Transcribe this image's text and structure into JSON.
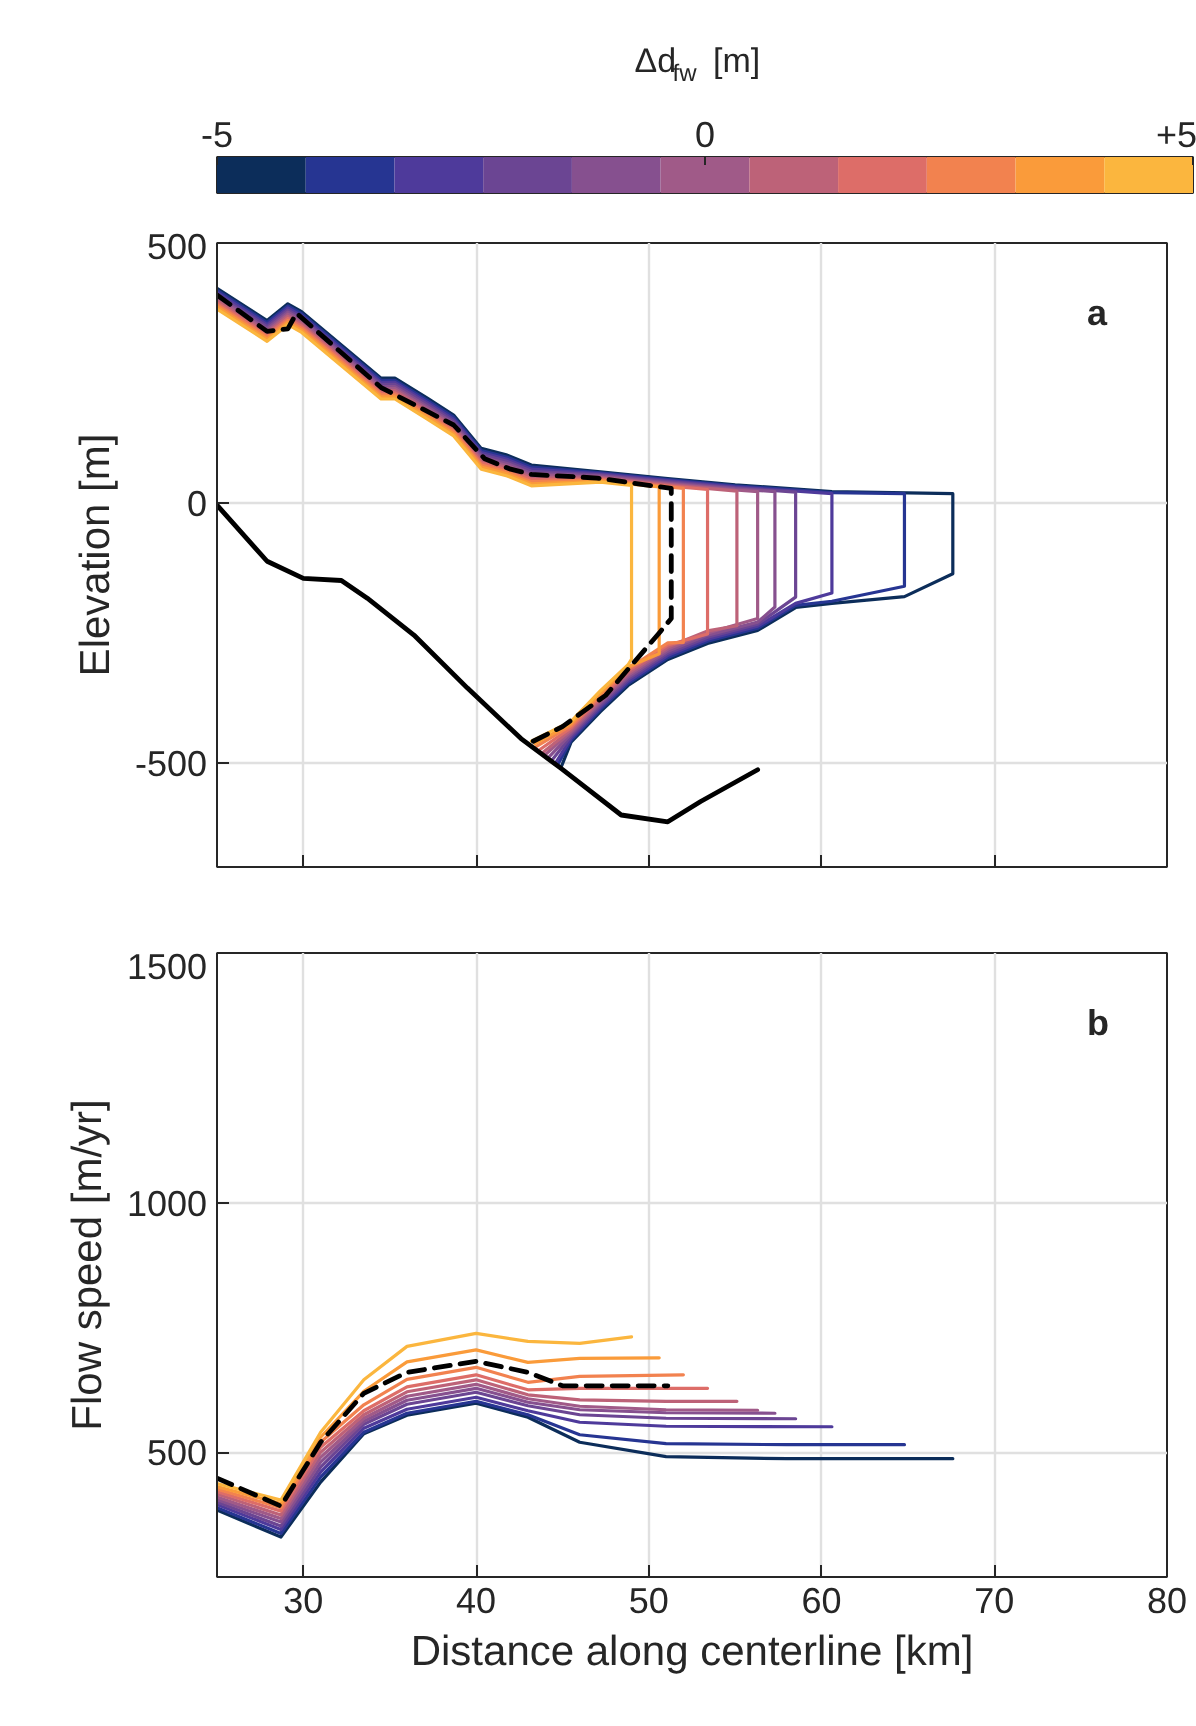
{
  "chart_data": [
    {
      "type": "line",
      "clabel": "Δd$_{fw}$ [m]",
      "clim": [
        -5,
        5
      ],
      "cticks": [
        -5,
        0,
        {
          "value": 5,
          "label": "+5"
        }
      ],
      "colors": [
        "#0c2d5a",
        "#263592",
        "#4e3a9b",
        "#6b4593",
        "#86508f",
        "#a05a88",
        "#bd6278",
        "#dd6d68",
        "#f2824f",
        "#fa9b3a",
        "#fbb63e"
      ],
      "ylabel": "Elevation [m]",
      "xlim": [
        25,
        80
      ],
      "xticks": [
        30,
        40,
        50,
        60,
        70,
        80
      ],
      "ylim": [
        -700,
        500
      ],
      "yticks": [
        -500,
        0,
        500
      ],
      "grid": true,
      "tick_labels": "y",
      "annotations": [
        "a"
      ],
      "series": [
        {
          "color": "#0c2d5a",
          "x": [
            25,
            27.9,
            29.1,
            29.9,
            34.5,
            35.3,
            37.2,
            38.7,
            40.3,
            41.8,
            43.2,
            47.2,
            51.1,
            55,
            60.6,
            67.6,
            67.6,
            64.8,
            60.6,
            58.5,
            56.3,
            53.4,
            51.1,
            48.8,
            47.2,
            45.5,
            44.9
          ],
          "values": [
            413,
            351,
            383,
            368,
            240,
            240,
            201,
            169,
            105,
            92,
            73,
            60,
            47,
            35,
            22,
            18,
            -136,
            -180,
            -193,
            -201,
            -245,
            -270,
            -301,
            -351,
            -401,
            -460,
            -510
          ]
        },
        {
          "color": "#263592",
          "x": [
            25,
            27.9,
            29.1,
            29.9,
            34.5,
            35.3,
            37.2,
            38.7,
            40.3,
            41.8,
            43.2,
            47.2,
            51.1,
            55,
            60.6,
            64.8,
            64.8,
            60.6,
            58.5,
            56.3,
            53.4,
            51.1,
            48.8,
            47.2,
            45.5,
            44.7
          ],
          "values": [
            409,
            347,
            379,
            364,
            236,
            236,
            197,
            165,
            101,
            88,
            69,
            58,
            45,
            33,
            20,
            18,
            -160,
            -189,
            -197,
            -241,
            -266,
            -297,
            -347,
            -397,
            -456,
            -505
          ]
        },
        {
          "color": "#4e3a9b",
          "x": [
            25,
            27.9,
            29.1,
            29.9,
            34.5,
            35.3,
            37.2,
            38.7,
            40.3,
            41.8,
            43.2,
            47.2,
            51.1,
            55,
            60.6,
            60.6,
            58.5,
            56.3,
            53.4,
            51.1,
            48.8,
            47.2,
            45.5,
            44.6
          ],
          "values": [
            405,
            343,
            375,
            360,
            232,
            232,
            193,
            161,
            97,
            84,
            65,
            56,
            43,
            31,
            18,
            -173,
            -193,
            -237,
            -262,
            -293,
            -343,
            -393,
            -452,
            -500
          ]
        },
        {
          "color": "#6b4593",
          "x": [
            25,
            27.9,
            29.1,
            29.9,
            34.5,
            35.3,
            37.2,
            38.7,
            40.3,
            41.8,
            43.2,
            47.2,
            51.1,
            55,
            58.5,
            58.5,
            56.3,
            53.4,
            51.1,
            48.8,
            47.2,
            45.5,
            44.4
          ],
          "values": [
            401,
            339,
            371,
            356,
            228,
            228,
            189,
            157,
            93,
            80,
            61,
            54,
            41,
            29,
            21,
            -181,
            -233,
            -258,
            -289,
            -339,
            -389,
            -448,
            -494
          ]
        },
        {
          "color": "#86508f",
          "x": [
            25,
            27.9,
            29.1,
            29.9,
            34.5,
            35.3,
            37.2,
            38.7,
            40.3,
            41.8,
            43.2,
            47.2,
            51.1,
            55,
            57.3,
            57.3,
            56.3,
            53.4,
            51.1,
            48.8,
            47.2,
            45.5,
            44.2
          ],
          "values": [
            397,
            335,
            367,
            352,
            224,
            224,
            185,
            153,
            89,
            76,
            57,
            52,
            39,
            27,
            22,
            -200,
            -229,
            -254,
            -285,
            -335,
            -385,
            -444,
            -489
          ]
        },
        {
          "color": "#a05a88",
          "x": [
            25,
            27.9,
            29.1,
            29.9,
            34.5,
            35.3,
            37.2,
            38.7,
            40.3,
            41.8,
            43.2,
            47.2,
            51.1,
            55,
            56.3,
            56.3,
            53.4,
            51.1,
            48.8,
            47.2,
            45.5,
            44.0
          ],
          "values": [
            393,
            331,
            363,
            348,
            220,
            220,
            181,
            149,
            85,
            72,
            53,
            50,
            37,
            25,
            22,
            -222,
            -250,
            -281,
            -331,
            -381,
            -440,
            -484
          ]
        },
        {
          "color": "#bd6278",
          "x": [
            25,
            27.9,
            29.1,
            29.9,
            34.5,
            35.3,
            37.2,
            38.7,
            40.3,
            41.8,
            43.2,
            47.2,
            51.1,
            55.1,
            55.1,
            53.4,
            51.1,
            48.8,
            47.2,
            45.5,
            43.9
          ],
          "values": [
            389,
            327,
            359,
            344,
            216,
            216,
            177,
            145,
            81,
            68,
            49,
            48,
            35,
            23,
            -236,
            -246,
            -277,
            -327,
            -377,
            -436,
            -479
          ]
        },
        {
          "color": "#dd6d68",
          "x": [
            25,
            27.9,
            29.1,
            29.9,
            34.5,
            35.3,
            37.2,
            38.7,
            40.3,
            41.8,
            43.2,
            47.2,
            51.1,
            53.4,
            53.4,
            51.1,
            48.8,
            47.2,
            45.5,
            43.7
          ],
          "values": [
            385,
            323,
            355,
            340,
            212,
            212,
            173,
            141,
            77,
            64,
            45,
            46,
            33,
            26,
            -252,
            -273,
            -323,
            -373,
            -432,
            -474
          ]
        },
        {
          "color": "#f2824f",
          "x": [
            25,
            27.9,
            29.1,
            29.9,
            34.5,
            35.3,
            37.2,
            38.7,
            40.3,
            41.8,
            43.2,
            47.2,
            51.1,
            52.0,
            52.0,
            51.1,
            48.8,
            47.2,
            45.5,
            43.5
          ],
          "values": [
            381,
            319,
            351,
            336,
            208,
            208,
            169,
            137,
            73,
            60,
            41,
            44,
            31,
            28,
            -268,
            -269,
            -319,
            -369,
            -428,
            -468
          ]
        },
        {
          "color": "#fa9b3a",
          "x": [
            25,
            27.9,
            29.1,
            29.9,
            34.5,
            35.3,
            37.2,
            38.7,
            40.3,
            41.8,
            43.2,
            47.2,
            50.6,
            50.6,
            48.8,
            47.2,
            45.5,
            43.4
          ],
          "values": [
            377,
            315,
            347,
            332,
            204,
            204,
            165,
            133,
            69,
            56,
            37,
            42,
            31,
            -290,
            -315,
            -365,
            -424,
            -463
          ]
        },
        {
          "color": "#fbb63e",
          "x": [
            25,
            27.9,
            29.1,
            29.9,
            34.5,
            35.3,
            37.2,
            38.7,
            40.3,
            41.8,
            43.2,
            47.2,
            49.0,
            49.0,
            48.8,
            47.2,
            45.5,
            43.2
          ],
          "values": [
            373,
            311,
            343,
            328,
            200,
            200,
            161,
            129,
            65,
            52,
            33,
            40,
            34,
            -300,
            -311,
            -361,
            -420,
            -458
          ]
        },
        {
          "color": "#000000",
          "line_style": "dashed",
          "x": [
            25,
            27.9,
            29.1,
            29.6,
            34.5,
            38.7,
            40.5,
            42,
            43.2,
            47,
            51.3,
            51.3,
            50.7,
            47.5,
            45,
            43.2
          ],
          "values": [
            400,
            330,
            335,
            365,
            222,
            150,
            85,
            65,
            55,
            48,
            28,
            -222,
            -246,
            -370,
            -430,
            -460
          ]
        },
        {
          "color": "#000000",
          "x": [
            25,
            27.9,
            30,
            32.2,
            33.7,
            36.4,
            39.5,
            42.6,
            44.9,
            48.4,
            51.1,
            53.0,
            56.3
          ],
          "values": [
            -4,
            -112,
            -145,
            -149,
            -183,
            -254,
            -356,
            -453,
            -510,
            -600,
            -613,
            -574,
            -513
          ]
        }
      ]
    },
    {
      "type": "line",
      "xlabel": "Distance along centerline [km]",
      "ylabel": "Flow speed [m/yr]",
      "xlim": [
        25,
        80
      ],
      "xticks": [
        30,
        40,
        50,
        60,
        70,
        80
      ],
      "ylim": [
        250,
        1500
      ],
      "yticks": [
        500,
        1000,
        1500
      ],
      "grid": true,
      "annotations": [
        "b"
      ],
      "series": [
        {
          "color": "#0c2d5a",
          "x": [
            25,
            28.7,
            31,
            33.5,
            36,
            40,
            43,
            46,
            51,
            58,
            67.6
          ],
          "values": [
            384,
            330,
            440,
            537,
            574,
            598,
            570,
            520,
            491,
            487,
            487
          ]
        },
        {
          "color": "#263592",
          "x": [
            25,
            28.7,
            31,
            33.5,
            36,
            40,
            43,
            46,
            51,
            58,
            64.8
          ],
          "values": [
            389,
            337,
            450,
            540,
            578,
            602,
            575,
            535,
            517,
            515,
            515
          ]
        },
        {
          "color": "#4e3a9b",
          "x": [
            25,
            28.7,
            31,
            33.5,
            36,
            40,
            43,
            46,
            51,
            60.6
          ],
          "values": [
            395,
            345,
            460,
            548,
            586,
            610,
            583,
            560,
            552,
            551
          ]
        },
        {
          "color": "#6b4593",
          "x": [
            25,
            28.7,
            31,
            33.5,
            36,
            40,
            43,
            46,
            51,
            58.5
          ],
          "values": [
            400,
            352,
            470,
            556,
            596,
            620,
            593,
            575,
            568,
            567
          ]
        },
        {
          "color": "#86508f",
          "x": [
            25,
            28.7,
            31,
            33.5,
            36,
            40,
            43,
            46,
            51,
            57.3
          ],
          "values": [
            405,
            360,
            480,
            562,
            604,
            628,
            600,
            585,
            579,
            578
          ]
        },
        {
          "color": "#a05a88",
          "x": [
            25,
            28.7,
            31,
            33.5,
            36,
            40,
            43,
            46,
            51,
            56.3
          ],
          "values": [
            410,
            367,
            490,
            568,
            612,
            636,
            607,
            592,
            585,
            584
          ]
        },
        {
          "color": "#bd6278",
          "x": [
            25,
            28.7,
            31,
            33.5,
            36,
            40,
            43,
            46,
            51,
            55.1
          ],
          "values": [
            416,
            374,
            500,
            575,
            621,
            645,
            615,
            605,
            602,
            602
          ]
        },
        {
          "color": "#dd6d68",
          "x": [
            25,
            28.7,
            31,
            33.5,
            36,
            40,
            43,
            46,
            53.4
          ],
          "values": [
            421,
            382,
            510,
            583,
            631,
            655,
            625,
            628,
            628
          ]
        },
        {
          "color": "#f2824f",
          "x": [
            25,
            28.7,
            31,
            33.5,
            36,
            40,
            43,
            46,
            52.0
          ],
          "values": [
            426,
            389,
            520,
            595,
            646,
            670,
            640,
            652,
            655
          ]
        },
        {
          "color": "#fa9b3a",
          "x": [
            25,
            28.7,
            31,
            33.5,
            36,
            40,
            43,
            46,
            50.6
          ],
          "values": [
            431,
            397,
            530,
            622,
            681,
            705,
            680,
            688,
            689
          ]
        },
        {
          "color": "#fbb63e",
          "x": [
            25,
            28.7,
            31,
            33.5,
            36,
            40,
            43,
            46,
            49.0
          ],
          "values": [
            437,
            404,
            540,
            645,
            712,
            738,
            722,
            718,
            731
          ]
        },
        {
          "color": "#000000",
          "line_style": "dashed",
          "x": [
            25,
            28.7,
            31,
            33.5,
            36,
            40,
            43,
            45,
            51.1
          ],
          "values": [
            448,
            392,
            520,
            618,
            660,
            682,
            660,
            633,
            633
          ]
        }
      ]
    }
  ]
}
